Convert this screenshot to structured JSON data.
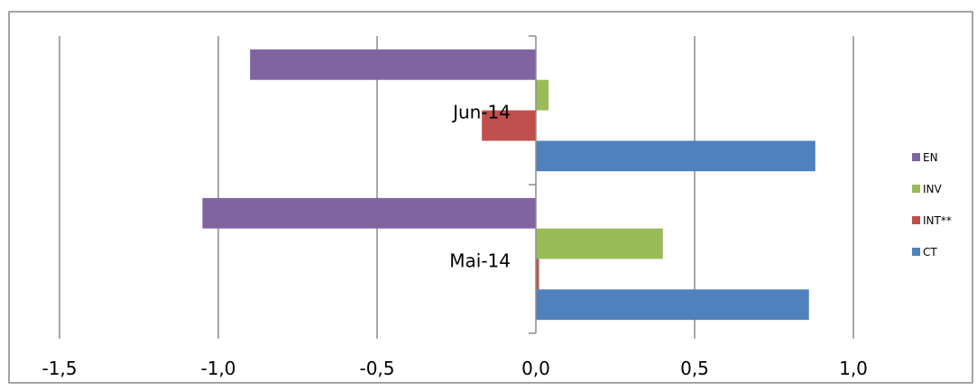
{
  "chart_data": {
    "type": "bar",
    "orientation": "horizontal",
    "categories": [
      "Mai-14",
      "Jun-14"
    ],
    "series": [
      {
        "name": "CT",
        "color": "#4f81bd",
        "values": [
          0.86,
          0.88
        ]
      },
      {
        "name": "INT**",
        "color": "#c0504d",
        "values": [
          0.01,
          -0.17
        ]
      },
      {
        "name": "INV",
        "color": "#9bbb59",
        "values": [
          0.4,
          0.04
        ]
      },
      {
        "name": "EN",
        "color": "#8064a2",
        "values": [
          -1.05,
          -0.9
        ]
      }
    ],
    "xlim": [
      -1.5,
      1.0
    ],
    "xticks": [
      -1.5,
      -1.0,
      -0.5,
      0.0,
      0.5,
      1.0
    ],
    "xtick_labels": [
      "-1,5",
      "-1,0",
      "-0,5",
      "0,0",
      "0,5",
      "1,0"
    ],
    "title": "",
    "xlabel": "",
    "ylabel": "",
    "grid": "vertical",
    "legend_position": "right",
    "legend_order": [
      "EN",
      "INV",
      "INT**",
      "CT"
    ]
  }
}
